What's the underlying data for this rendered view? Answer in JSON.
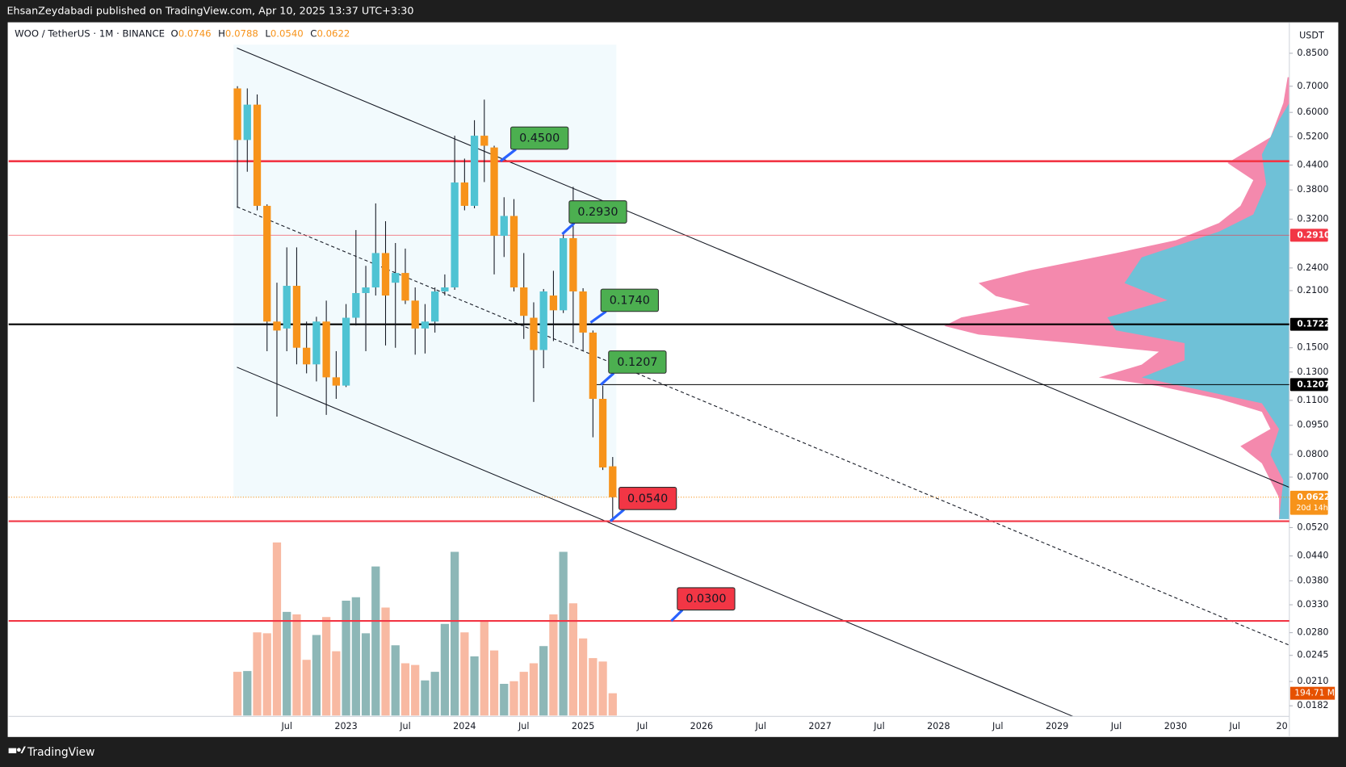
{
  "header": {
    "byline": "EhsanZeydabadi published on TradingView.com, Apr 10, 2025 13:37 UTC+3:30",
    "brand": "TradingView"
  },
  "chart_data": {
    "type": "candlestick",
    "title": "WOO / TetherUS · 1M · BINANCE",
    "y_unit": "USDT",
    "x": [
      "2022-02",
      "2022-03",
      "2022-04",
      "2022-05",
      "2022-06",
      "2022-07",
      "2022-08",
      "2022-09",
      "2022-10",
      "2022-11",
      "2022-12",
      "2023-01",
      "2023-02",
      "2023-03",
      "2023-04",
      "2023-05",
      "2023-06",
      "2023-07",
      "2023-08",
      "2023-09",
      "2023-10",
      "2023-11",
      "2023-12",
      "2024-01",
      "2024-02",
      "2024-03",
      "2024-04",
      "2024-05",
      "2024-06",
      "2024-07",
      "2024-08",
      "2024-09",
      "2024-10",
      "2024-11",
      "2024-12",
      "2025-01",
      "2025-02",
      "2025-03",
      "2025-04"
    ],
    "open": [
      0.691,
      0.51,
      0.628,
      0.346,
      0.175,
      0.168,
      0.216,
      0.15,
      0.136,
      0.175,
      0.126,
      0.12,
      0.179,
      0.207,
      0.214,
      0.262,
      0.22,
      0.233,
      0.198,
      0.168,
      0.175,
      0.209,
      0.214,
      0.397,
      0.346,
      0.523,
      0.488,
      0.29,
      0.326,
      0.214,
      0.179,
      0.148,
      0.204,
      0.187,
      0.286,
      0.209,
      0.164,
      0.111,
      0.0746
    ],
    "high": [
      0.7,
      0.691,
      0.667,
      0.349,
      0.22,
      0.271,
      0.271,
      0.175,
      0.18,
      0.198,
      0.147,
      0.194,
      0.3,
      0.243,
      0.351,
      0.316,
      0.278,
      0.269,
      0.214,
      0.194,
      0.214,
      0.231,
      0.523,
      0.457,
      0.573,
      0.647,
      0.493,
      0.364,
      0.36,
      0.262,
      0.196,
      0.212,
      0.236,
      0.297,
      0.387,
      0.213,
      0.166,
      0.12,
      0.0788
    ],
    "low": [
      0.342,
      0.423,
      0.337,
      0.147,
      0.1,
      0.147,
      0.136,
      0.129,
      0.123,
      0.101,
      0.111,
      0.119,
      0.171,
      0.147,
      0.204,
      0.152,
      0.15,
      0.194,
      0.144,
      0.145,
      0.164,
      0.204,
      0.211,
      0.337,
      0.341,
      0.398,
      0.231,
      0.256,
      0.209,
      0.158,
      0.109,
      0.133,
      0.156,
      0.184,
      0.154,
      0.147,
      0.0885,
      0.073,
      0.054
    ],
    "close": [
      0.51,
      0.628,
      0.346,
      0.175,
      0.166,
      0.216,
      0.15,
      0.136,
      0.175,
      0.126,
      0.12,
      0.179,
      0.207,
      0.214,
      0.262,
      0.204,
      0.233,
      0.198,
      0.168,
      0.175,
      0.209,
      0.214,
      0.397,
      0.346,
      0.523,
      0.493,
      0.29,
      0.326,
      0.214,
      0.181,
      0.148,
      0.209,
      0.187,
      0.286,
      0.209,
      0.164,
      0.111,
      0.0741,
      0.0622
    ],
    "volume": [
      382,
      389,
      727,
      719,
      1513,
      906,
      884,
      487,
      704,
      861,
      562,
      1004,
      1034,
      719,
      1303,
      944,
      614,
      457,
      442,
      307,
      382,
      801,
      1431,
      727,
      517,
      824,
      569,
      277,
      300,
      382,
      457,
      607,
      884,
      1431,
      981,
      674,
      502,
      472,
      194.71
    ],
    "volume_marker": {
      "value": 194.71,
      "label": "194.71 M"
    },
    "vlim": [
      0,
      1500
    ],
    "up_color": "#4fc3d3",
    "down_color": "#f7931a",
    "volume_up_color": "#8db7b7",
    "volume_down_color": "#f8b9a2",
    "log_scale": true,
    "grid": false,
    "ylim": [
      0.0171,
      1.02
    ],
    "yticks": [
      {
        "value": 0.85,
        "label": "0.8500"
      },
      {
        "value": 0.7,
        "label": "0.7000"
      },
      {
        "value": 0.6,
        "label": "0.6000"
      },
      {
        "value": 0.52,
        "label": "0.5200"
      },
      {
        "value": 0.44,
        "label": "0.4400"
      },
      {
        "value": 0.38,
        "label": "0.3800"
      },
      {
        "value": 0.32,
        "label": "0.3200"
      },
      {
        "value": 0.24,
        "label": "0.2400"
      },
      {
        "value": 0.21,
        "label": "0.2100"
      },
      {
        "value": 0.15,
        "label": "0.1500"
      },
      {
        "value": 0.13,
        "label": "0.1300"
      },
      {
        "value": 0.11,
        "label": "0.1100"
      },
      {
        "value": 0.095,
        "label": "0.0950"
      },
      {
        "value": 0.08,
        "label": "0.0800"
      },
      {
        "value": 0.07,
        "label": "0.0700"
      },
      {
        "value": 0.052,
        "label": "0.0520"
      },
      {
        "value": 0.044,
        "label": "0.0440"
      },
      {
        "value": 0.038,
        "label": "0.0380"
      },
      {
        "value": 0.033,
        "label": "0.0330"
      },
      {
        "value": 0.028,
        "label": "0.0280"
      },
      {
        "value": 0.0245,
        "label": "0.0245"
      },
      {
        "value": 0.021,
        "label": "0.0210"
      },
      {
        "value": 0.0182,
        "label": "0.0182"
      }
    ],
    "xlim": [
      "2020-03",
      "2030-12"
    ],
    "xticks": [
      {
        "value": "2022-07",
        "label": "Jul"
      },
      {
        "value": "2023-01",
        "label": "2023"
      },
      {
        "value": "2023-07",
        "label": "Jul"
      },
      {
        "value": "2024-01",
        "label": "2024"
      },
      {
        "value": "2024-07",
        "label": "Jul"
      },
      {
        "value": "2025-01",
        "label": "2025"
      },
      {
        "value": "2025-07",
        "label": "Jul"
      },
      {
        "value": "2026-01",
        "label": "2026"
      },
      {
        "value": "2026-07",
        "label": "Jul"
      },
      {
        "value": "2027-01",
        "label": "2027"
      },
      {
        "value": "2027-07",
        "label": "Jul"
      },
      {
        "value": "2028-01",
        "label": "2028"
      },
      {
        "value": "2028-07",
        "label": "Jul"
      },
      {
        "value": "2029-01",
        "label": "2029"
      },
      {
        "value": "2029-07",
        "label": "Jul"
      },
      {
        "value": "2030-01",
        "label": "2030"
      },
      {
        "value": "2030-07",
        "label": "Jul"
      },
      {
        "value": "2031-01",
        "label": "20"
      }
    ],
    "ohlc_legend": {
      "letters": [
        "O",
        "H",
        "L",
        "C"
      ],
      "values": [
        0.0746,
        0.0788,
        0.054,
        0.0622
      ],
      "value_labels": [
        "0.0746",
        "0.0788",
        "0.0540",
        "0.0622"
      ]
    },
    "price_lines": [
      {
        "value": 0.45,
        "color": "#f23645",
        "style": "thick"
      },
      {
        "value": 0.291,
        "color": "#f23645",
        "style": "thin"
      },
      {
        "value": 0.1722,
        "color": "#000000",
        "style": "medium"
      },
      {
        "value": 0.1207,
        "color": "#000000",
        "style": "thin",
        "start": "2025-02"
      },
      {
        "value": 0.0622,
        "color": "#f7931a",
        "style": "dotted"
      },
      {
        "value": 0.054,
        "color": "#f23645",
        "style": "medium"
      },
      {
        "value": 0.03,
        "color": "#f23645",
        "style": "medium"
      }
    ],
    "axis_markers": [
      {
        "value": 0.291,
        "label": "0.2910",
        "color": "#f23645"
      },
      {
        "value": 0.1722,
        "label": "0.1722",
        "color": "#000000"
      },
      {
        "value": 0.1207,
        "label": "0.1207",
        "color": "#000000"
      },
      {
        "value": 0.0622,
        "label": "0.0622",
        "color": "#f7931a",
        "countdown": "20d 14h"
      }
    ],
    "annotations": [
      {
        "value": 0.45,
        "label": "0.4500",
        "color": "#4caf50"
      },
      {
        "value": 0.293,
        "label": "0.2930",
        "color": "#4caf50"
      },
      {
        "value": 0.174,
        "label": "0.1740",
        "color": "#4caf50"
      },
      {
        "value": 0.1207,
        "label": "0.1207",
        "color": "#4caf50"
      },
      {
        "value": 0.054,
        "label": "0.0540",
        "color": "#f23645"
      },
      {
        "value": 0.03,
        "label": "0.0300",
        "color": "#f23645"
      }
    ]
  }
}
